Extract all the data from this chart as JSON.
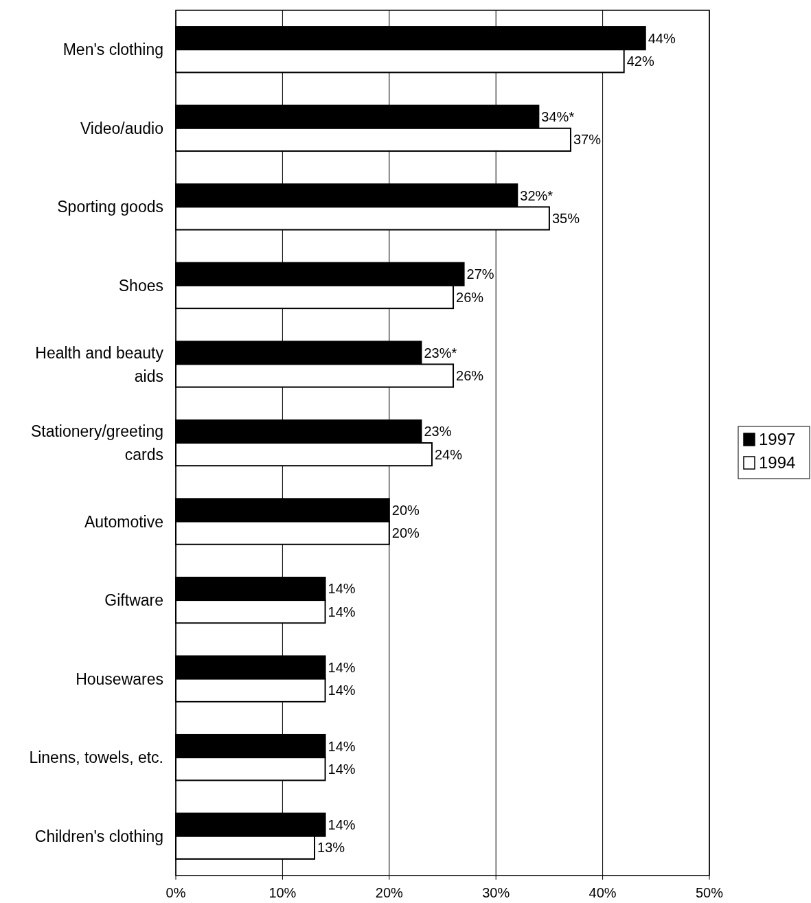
{
  "chart_data": {
    "type": "bar",
    "orientation": "horizontal",
    "categories": [
      "Men's clothing",
      "Video/audio",
      "Sporting goods",
      "Shoes",
      "Health and beauty aids",
      "Stationery/greeting cards",
      "Automotive",
      "Giftware",
      "Housewares",
      "Linens, towels, etc.",
      "Children's clothing"
    ],
    "series": [
      {
        "name": "1997",
        "color": "#000000",
        "values": [
          44,
          34,
          32,
          27,
          23,
          23,
          20,
          14,
          14,
          14,
          14
        ],
        "value_labels": [
          "44%",
          "34%*",
          "32%*",
          "27%",
          "23%*",
          "23%",
          "20%",
          "14%",
          "14%",
          "14%",
          "14%"
        ]
      },
      {
        "name": "1994",
        "color": "#ffffff",
        "values": [
          42,
          37,
          35,
          26,
          26,
          24,
          20,
          14,
          14,
          14,
          13
        ],
        "value_labels": [
          "42%",
          "37%",
          "35%",
          "26%",
          "26%",
          "24%",
          "20%",
          "14%",
          "14%",
          "14%",
          "13%"
        ]
      }
    ],
    "xlim": [
      0,
      50
    ],
    "xticks": [
      {
        "value": 0,
        "label": "0%"
      },
      {
        "value": 10,
        "label": "10%"
      },
      {
        "value": 20,
        "label": "20%"
      },
      {
        "value": 30,
        "label": "30%"
      },
      {
        "value": 40,
        "label": "40%"
      },
      {
        "value": 50,
        "label": "50%"
      }
    ],
    "grid": "x",
    "legend": "right"
  }
}
